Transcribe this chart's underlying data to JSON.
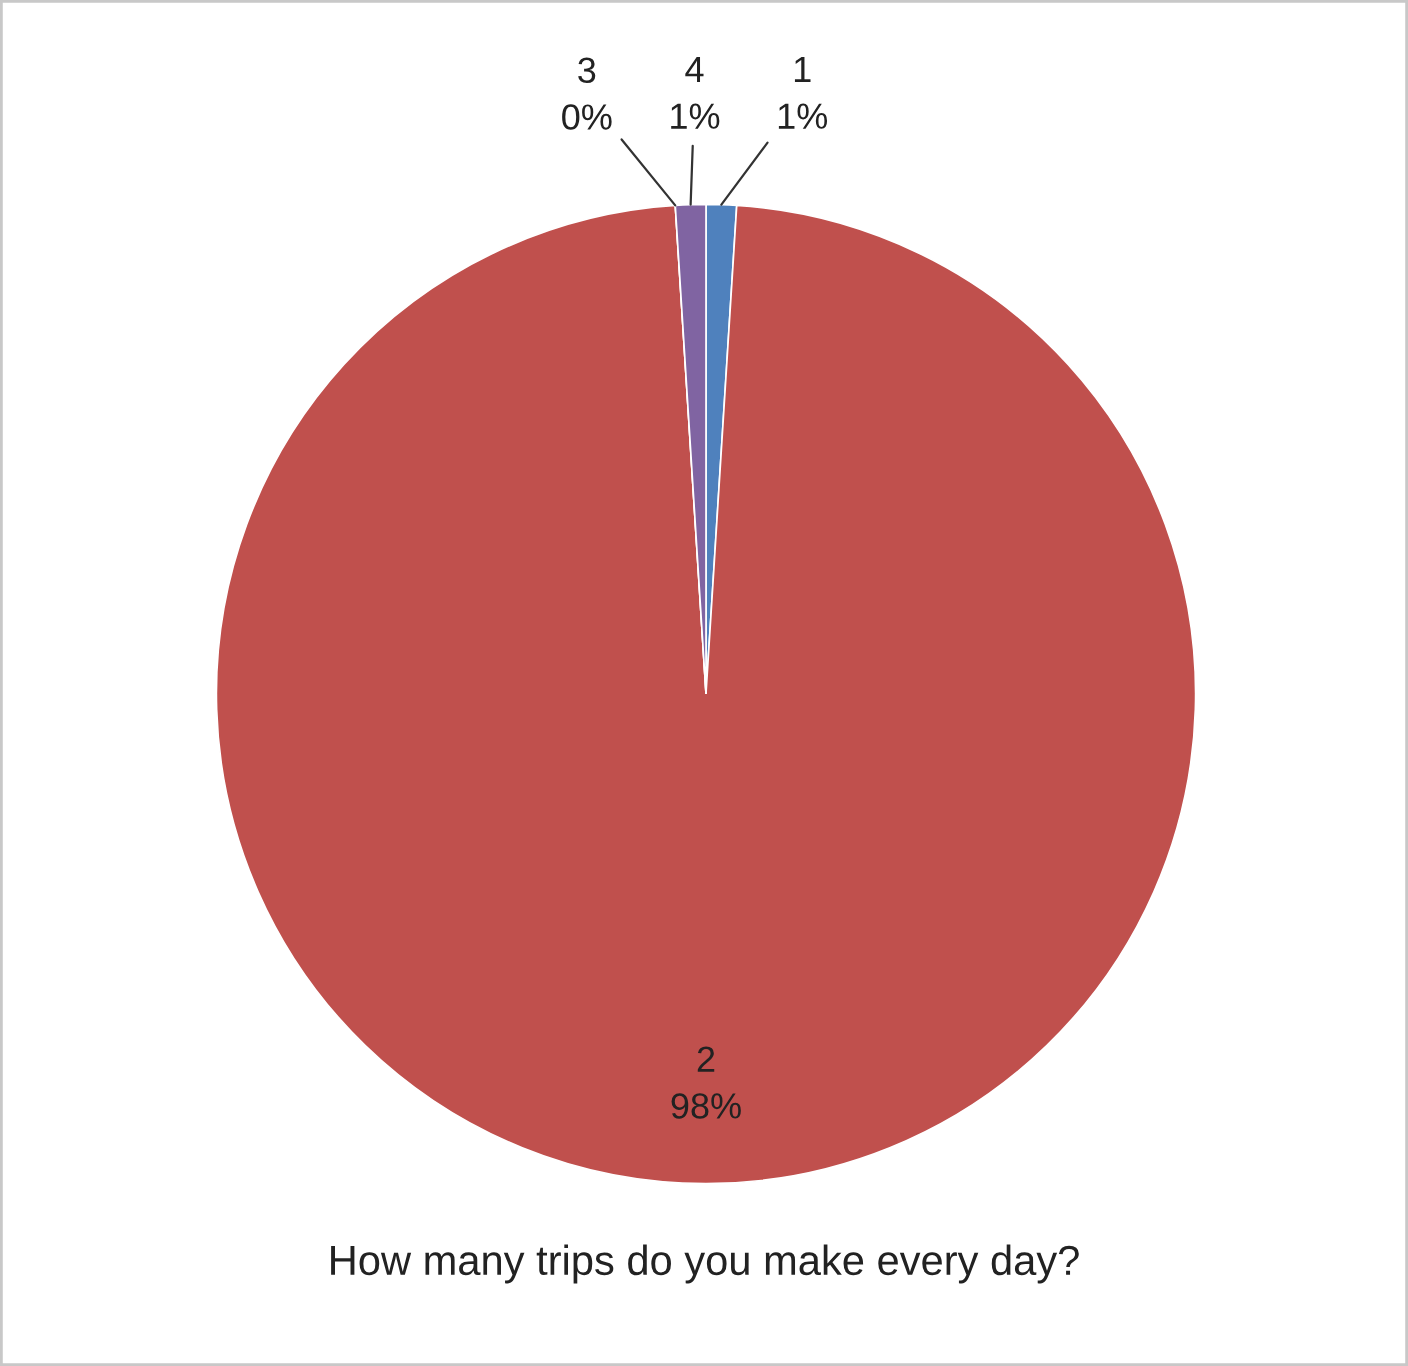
{
  "chart_data": {
    "type": "pie",
    "title": "How many trips do you make every day?",
    "categories": [
      "1",
      "2",
      "3",
      "4"
    ],
    "values": [
      1,
      98,
      0,
      1
    ],
    "colors": [
      "#4f81bd",
      "#c0504d",
      "#9bbb59",
      "#8064a2"
    ],
    "value_labels": [
      "1%",
      "98%",
      "0%",
      "1%"
    ]
  }
}
